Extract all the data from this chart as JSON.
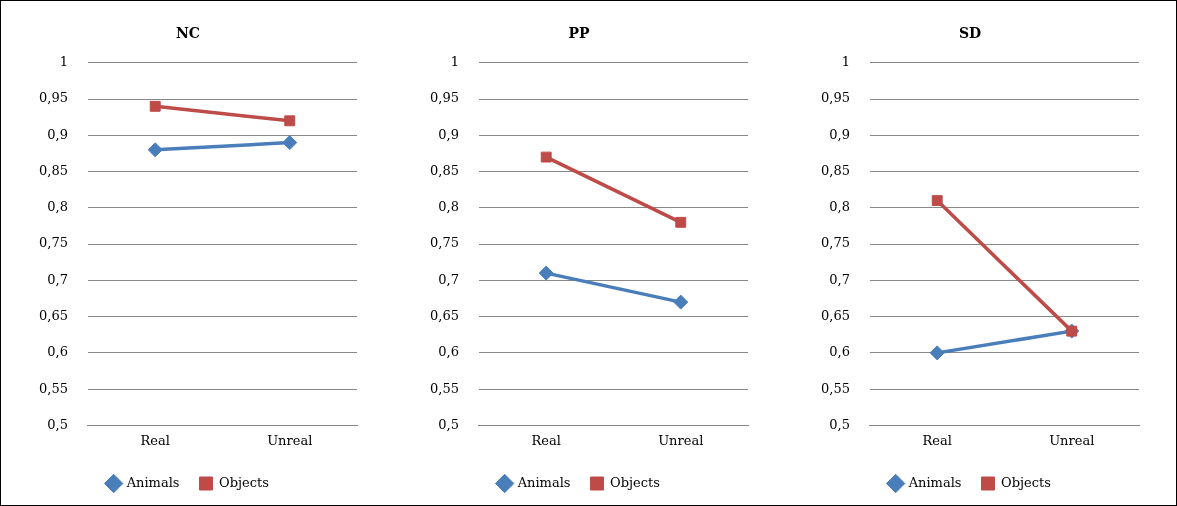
{
  "chart_data": [
    {
      "type": "line",
      "title": "NC",
      "categories": [
        "Real",
        "Unreal"
      ],
      "ylim": [
        0.5,
        1
      ],
      "yticks": [
        {
          "value": 0.5,
          "label": "0,5"
        },
        {
          "value": 0.55,
          "label": "0,55"
        },
        {
          "value": 0.6,
          "label": "0,6"
        },
        {
          "value": 0.65,
          "label": "0,65"
        },
        {
          "value": 0.7,
          "label": "0,7"
        },
        {
          "value": 0.75,
          "label": "0,75"
        },
        {
          "value": 0.8,
          "label": "0,8"
        },
        {
          "value": 0.85,
          "label": "0,85"
        },
        {
          "value": 0.9,
          "label": "0,9"
        },
        {
          "value": 0.95,
          "label": "0,95"
        },
        {
          "value": 1,
          "label": "1"
        }
      ],
      "grid": "y",
      "legend": "bottom",
      "line_style": "solid",
      "series": [
        {
          "name": "Animals",
          "color": "#4a7ebb",
          "marker": "diamond",
          "values": [
            0.88,
            0.89
          ]
        },
        {
          "name": "Objects",
          "color": "#be4b48",
          "marker": "square",
          "values": [
            0.94,
            0.92
          ]
        }
      ]
    },
    {
      "type": "line",
      "title": "PP",
      "categories": [
        "Real",
        "Unreal"
      ],
      "ylim": [
        0.5,
        1
      ],
      "yticks": [
        {
          "value": 0.5,
          "label": "0,5"
        },
        {
          "value": 0.55,
          "label": "0,55"
        },
        {
          "value": 0.6,
          "label": "0,6"
        },
        {
          "value": 0.65,
          "label": "0,65"
        },
        {
          "value": 0.7,
          "label": "0,7"
        },
        {
          "value": 0.75,
          "label": "0,75"
        },
        {
          "value": 0.8,
          "label": "0,8"
        },
        {
          "value": 0.85,
          "label": "0,85"
        },
        {
          "value": 0.9,
          "label": "0,9"
        },
        {
          "value": 0.95,
          "label": "0,95"
        },
        {
          "value": 1,
          "label": "1"
        }
      ],
      "grid": "y",
      "legend": "bottom",
      "line_style": "solid",
      "series": [
        {
          "name": "Animals",
          "color": "#4a7ebb",
          "marker": "diamond",
          "values": [
            0.71,
            0.67
          ]
        },
        {
          "name": "Objects",
          "color": "#be4b48",
          "marker": "square",
          "values": [
            0.87,
            0.78
          ]
        }
      ]
    },
    {
      "type": "line",
      "title": "SD",
      "categories": [
        "Real",
        "Unreal"
      ],
      "ylim": [
        0.5,
        1
      ],
      "yticks": [
        {
          "value": 0.5,
          "label": "0,5"
        },
        {
          "value": 0.55,
          "label": "0,55"
        },
        {
          "value": 0.6,
          "label": "0,6"
        },
        {
          "value": 0.65,
          "label": "0,65"
        },
        {
          "value": 0.7,
          "label": "0,7"
        },
        {
          "value": 0.75,
          "label": "0,75"
        },
        {
          "value": 0.8,
          "label": "0,8"
        },
        {
          "value": 0.85,
          "label": "0,85"
        },
        {
          "value": 0.9,
          "label": "0,9"
        },
        {
          "value": 0.95,
          "label": "0,95"
        },
        {
          "value": 1,
          "label": "1"
        }
      ],
      "grid": "y",
      "legend": "bottom",
      "line_style": "solid",
      "series": [
        {
          "name": "Animals",
          "color": "#4a7ebb",
          "marker": "diamond",
          "values": [
            0.6,
            0.63
          ]
        },
        {
          "name": "Objects",
          "color": "#be4b48",
          "marker": "square",
          "values": [
            0.81,
            0.63
          ]
        }
      ]
    }
  ]
}
